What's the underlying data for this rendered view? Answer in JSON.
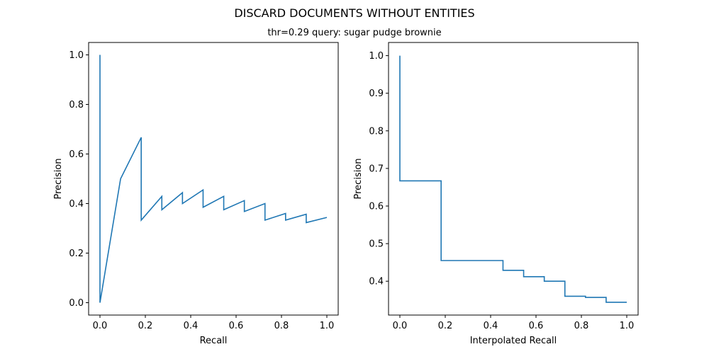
{
  "figure": {
    "title": "DISCARD DOCUMENTS WITHOUT ENTITIES",
    "subtitle": "thr=0.29    query: sugar pudge brownie"
  },
  "chart_data": [
    {
      "type": "line",
      "xlabel": "Recall",
      "ylabel": "Precision",
      "xlim": [
        -0.05,
        1.05
      ],
      "ylim": [
        -0.05,
        1.05
      ],
      "xticks": [
        "0.0",
        "0.2",
        "0.4",
        "0.6",
        "0.8",
        "1.0"
      ],
      "yticks": [
        "0.0",
        "0.2",
        "0.4",
        "0.6",
        "0.8",
        "1.0"
      ],
      "grid": false,
      "color": "#1f77b4",
      "series": [
        {
          "x": [
            0.0,
            0.0,
            0.0909,
            0.1818,
            0.1818,
            0.2727,
            0.2727,
            0.3636,
            0.3636,
            0.4545,
            0.4545,
            0.5455,
            0.5455,
            0.6364,
            0.6364,
            0.7273,
            0.7273,
            0.8182,
            0.8182,
            0.9091,
            0.9091,
            1.0
          ],
          "y": [
            1.0,
            0.0,
            0.5,
            0.667,
            0.333,
            0.429,
            0.375,
            0.444,
            0.4,
            0.455,
            0.385,
            0.429,
            0.375,
            0.412,
            0.368,
            0.4,
            0.333,
            0.36,
            0.333,
            0.357,
            0.323,
            0.344
          ]
        }
      ]
    },
    {
      "type": "line",
      "xlabel": "Interpolated Recall",
      "ylabel": "Precision",
      "xlim": [
        -0.05,
        1.05
      ],
      "ylim": [
        0.31,
        1.035
      ],
      "xticks": [
        "0.0",
        "0.2",
        "0.4",
        "0.6",
        "0.8",
        "1.0"
      ],
      "yticks": [
        "0.4",
        "0.5",
        "0.6",
        "0.7",
        "0.8",
        "0.9",
        "1.0"
      ],
      "grid": false,
      "color": "#1f77b4",
      "series": [
        {
          "x": [
            0.0,
            0.0,
            0.1818,
            0.1818,
            0.4545,
            0.4545,
            0.5455,
            0.5455,
            0.6364,
            0.6364,
            0.7273,
            0.7273,
            0.8182,
            0.8182,
            0.9091,
            0.9091,
            1.0
          ],
          "y": [
            1.0,
            0.667,
            0.667,
            0.455,
            0.455,
            0.429,
            0.429,
            0.412,
            0.412,
            0.4,
            0.4,
            0.36,
            0.36,
            0.357,
            0.357,
            0.344,
            0.344
          ]
        }
      ]
    }
  ]
}
